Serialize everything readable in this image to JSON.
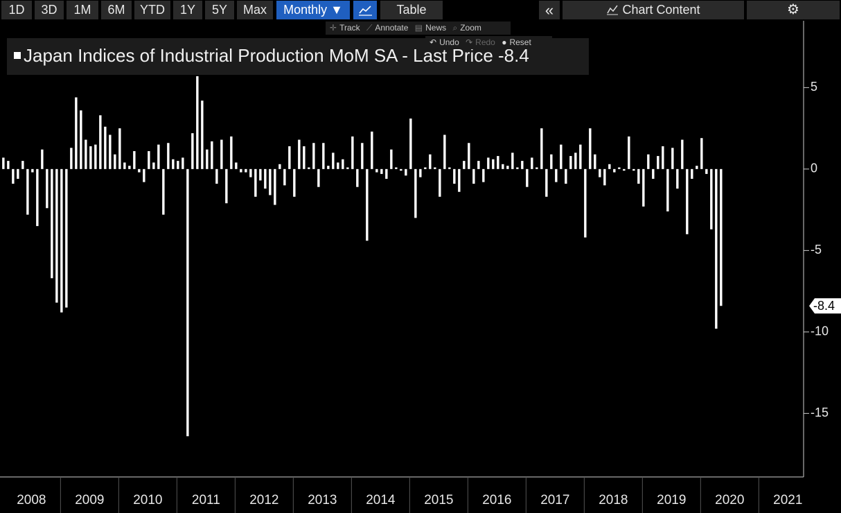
{
  "toolbar": {
    "buttons": [
      "1D",
      "3D",
      "1M",
      "6M",
      "YTD",
      "1Y",
      "5Y",
      "Max",
      "Monthly ▼",
      "Table",
      "Chart Content"
    ],
    "tools": [
      "Track",
      "Annotate",
      "News",
      "Zoom"
    ],
    "history": [
      "Undo",
      "Redo",
      "Reset"
    ]
  },
  "chart_data": {
    "type": "bar",
    "title": "Japan Indices of Industrial Production MoM SA - Last Price -8.4",
    "color": "#ffffff",
    "values": [
      0.7,
      0.5,
      -0.9,
      -0.6,
      0.5,
      -2.8,
      -0.2,
      -3.5,
      1.2,
      -2.4,
      -6.7,
      -8.2,
      -8.8,
      -8.5,
      1.3,
      4.4,
      3.6,
      1.8,
      1.4,
      1.5,
      3.3,
      2.6,
      2.1,
      0.9,
      2.5,
      0.4,
      0.2,
      1.1,
      -0.2,
      -0.8,
      1.1,
      0.4,
      1.5,
      -2.8,
      1.6,
      0.6,
      0.5,
      0.7,
      -16.4,
      2.2,
      5.7,
      4.2,
      1.2,
      1.7,
      -0.9,
      1.8,
      -2.1,
      2.0,
      0.4,
      -0.2,
      -0.2,
      -0.5,
      -1.7,
      -0.7,
      -1.2,
      -1.6,
      -2.2,
      0.3,
      -1.0,
      1.4,
      -1.7,
      1.8,
      1.4,
      0.1,
      1.6,
      -1.1,
      1.6,
      0.2,
      1.0,
      0.4,
      0.6,
      0.1,
      2.0,
      -1.1,
      1.6,
      -4.4,
      2.3,
      -0.2,
      -0.3,
      -0.6,
      1.2,
      0.1,
      -0.1,
      -0.4,
      3.1,
      -3.0,
      -0.5,
      0.1,
      0.9,
      0.1,
      -1.7,
      2.1,
      0.1,
      -0.9,
      -1.4,
      0.5,
      1.6,
      -0.9,
      0.5,
      -0.8,
      0.7,
      0.6,
      0.8,
      0.3,
      0.2,
      1.0,
      0.1,
      0.5,
      -1.1,
      0.7,
      0.1,
      2.5,
      -1.7,
      0.9,
      -0.8,
      1.5,
      -0.9,
      0.8,
      1.0,
      1.5,
      -4.2,
      2.5,
      0.9,
      -0.5,
      -1.0,
      0.3,
      -0.2,
      0.1,
      -0.1,
      2.0,
      -0.1,
      -0.9,
      -2.3,
      0.9,
      -0.6,
      0.8,
      1.4,
      -2.6,
      1.3,
      -1.2,
      1.8,
      -4.0,
      -0.6,
      0.2,
      1.9,
      -0.3,
      -3.7,
      -9.8,
      -8.4
    ],
    "start_year": 2008,
    "xlim": [
      2007.96,
      2021.77
    ],
    "xticks": [
      2008,
      2009,
      2010,
      2011,
      2012,
      2013,
      2014,
      2015,
      2016,
      2017,
      2018,
      2019,
      2020,
      2021
    ],
    "ylim": [
      -18.9,
      9.1
    ],
    "yticks": [
      5,
      0,
      -5,
      -10,
      -15
    ],
    "last_price": {
      "value": -8.4,
      "label": "-8.4"
    }
  }
}
